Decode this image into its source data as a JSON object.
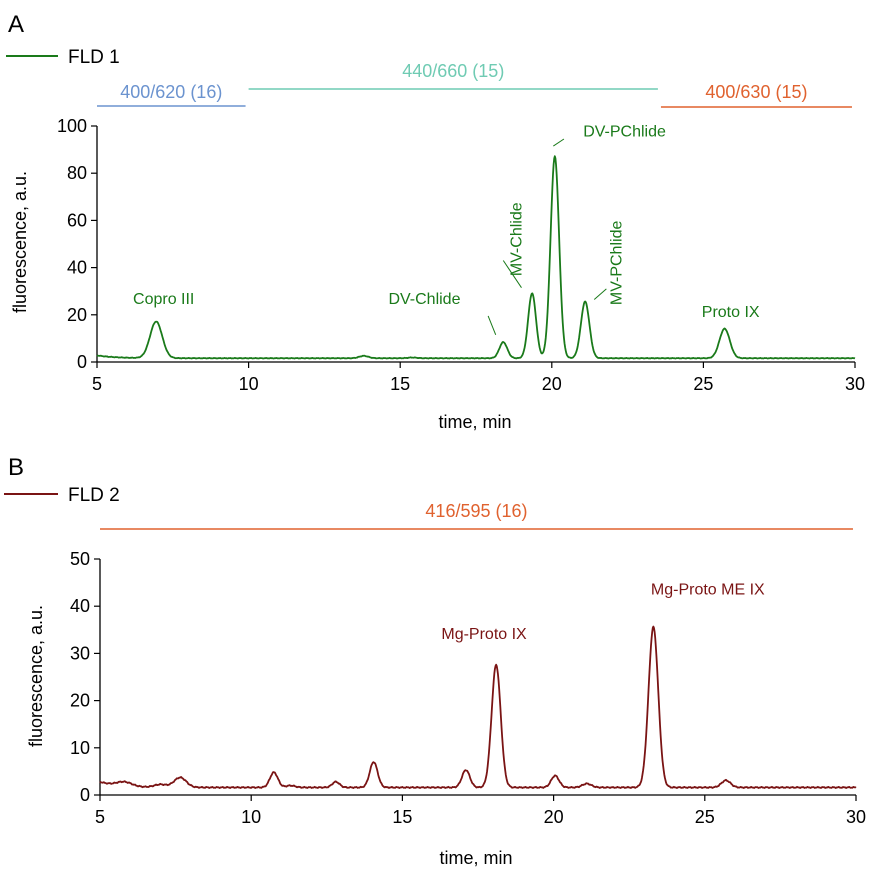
{
  "chart_data": [
    {
      "type": "line",
      "panel_label": "A",
      "legend": {
        "label": "FLD 1",
        "color": "#1a7a1a"
      },
      "xlabel": "time, min",
      "ylabel": "fluorescence, a.u.",
      "xlim": [
        5,
        30
      ],
      "ylim": [
        0,
        100
      ],
      "xticks": [
        5,
        10,
        15,
        20,
        25,
        30
      ],
      "yticks": [
        0,
        20,
        40,
        60,
        80,
        100
      ],
      "line_color": "#1a7a1a",
      "baseline": 1.6,
      "start_level": 2.8,
      "peaks": [
        {
          "t": 6.95,
          "h": 15.5,
          "w": 0.2
        },
        {
          "t": 13.8,
          "h": 1.0,
          "w": 0.15
        },
        {
          "t": 15.4,
          "h": 0.3,
          "w": 0.15
        },
        {
          "t": 18.4,
          "h": 6.8,
          "w": 0.13
        },
        {
          "t": 19.35,
          "h": 27.5,
          "w": 0.13
        },
        {
          "t": 20.1,
          "h": 85.5,
          "w": 0.14
        },
        {
          "t": 21.1,
          "h": 24.0,
          "w": 0.14
        },
        {
          "t": 25.7,
          "h": 12.5,
          "w": 0.17
        }
      ],
      "wavelength_ranges": [
        {
          "label": "400/620",
          "ref": "(16)",
          "x0": 5,
          "x1": 9.9,
          "color": "#6b93cf"
        },
        {
          "label": "440/660",
          "ref": "(15)",
          "x0": 10,
          "x1": 23.5,
          "color": "#6fcbb3"
        },
        {
          "label": "400/630",
          "ref": "(15)",
          "x0": 23.6,
          "x1": 29.9,
          "color": "#e0622f"
        }
      ],
      "annotations": [
        {
          "text": "Copro III",
          "x": 7.2,
          "y": 24.5
        },
        {
          "text": "DV-Chlide",
          "x": 15.8,
          "y": 24.5
        },
        {
          "text": "MV-Chlide",
          "x": 19.0,
          "y": 52,
          "rotate": true
        },
        {
          "text": "DV-PChlide",
          "x": 22.4,
          "y": 95.5
        },
        {
          "text": "MV-PChlide",
          "x": 22.3,
          "y": 42,
          "rotate": true
        },
        {
          "text": "Proto IX",
          "x": 25.9,
          "y": 19
        }
      ]
    },
    {
      "type": "line",
      "panel_label": "B",
      "legend": {
        "label": "FLD 2",
        "color": "#7a1414"
      },
      "xlabel": "time, min",
      "ylabel": "fluorescence, a.u.",
      "xlim": [
        5,
        30
      ],
      "ylim": [
        0,
        50
      ],
      "xticks": [
        5,
        10,
        15,
        20,
        25,
        30
      ],
      "yticks": [
        0,
        10,
        20,
        30,
        40,
        50
      ],
      "line_color": "#7a1414",
      "baseline": 1.6,
      "start_level": 2.8,
      "peaks": [
        {
          "t": 5.8,
          "h": 0.9,
          "w": 0.25
        },
        {
          "t": 7.0,
          "h": 0.6,
          "w": 0.2
        },
        {
          "t": 7.65,
          "h": 2.1,
          "w": 0.2
        },
        {
          "t": 10.75,
          "h": 3.2,
          "w": 0.13
        },
        {
          "t": 11.3,
          "h": 0.4,
          "w": 0.15
        },
        {
          "t": 12.8,
          "h": 1.2,
          "w": 0.12
        },
        {
          "t": 14.05,
          "h": 5.4,
          "w": 0.13
        },
        {
          "t": 17.1,
          "h": 3.7,
          "w": 0.13
        },
        {
          "t": 18.1,
          "h": 26.0,
          "w": 0.15
        },
        {
          "t": 20.05,
          "h": 2.5,
          "w": 0.13
        },
        {
          "t": 21.1,
          "h": 0.8,
          "w": 0.15
        },
        {
          "t": 23.3,
          "h": 34.0,
          "w": 0.16
        },
        {
          "t": 25.7,
          "h": 1.5,
          "w": 0.15
        }
      ],
      "wavelength_ranges": [
        {
          "label": "416/595",
          "ref": "(16)",
          "x0": 5,
          "x1": 29.9,
          "color": "#e0622f"
        }
      ],
      "annotations": [
        {
          "text": "Mg-Proto IX",
          "x": 17.7,
          "y": 33
        },
        {
          "text": "Mg-Proto ME IX",
          "x": 25.1,
          "y": 42.5
        }
      ]
    }
  ]
}
